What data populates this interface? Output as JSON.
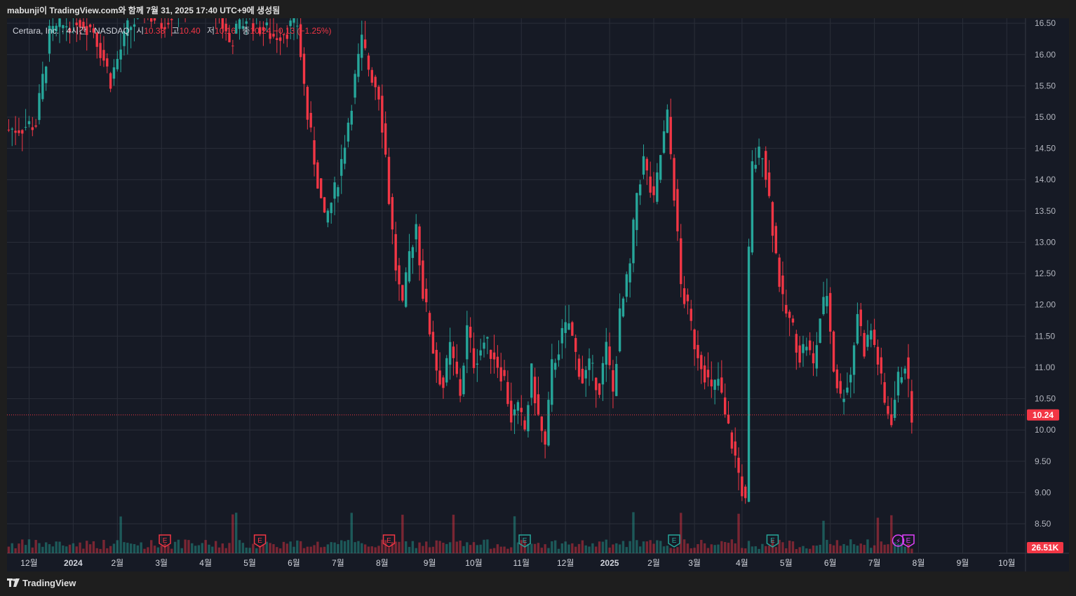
{
  "header": {
    "title": "mabunji이 TradingView.com와 함께 7월 31, 2025 17:40 UTC+9에 생성됨"
  },
  "legend": {
    "symbol": "Certara, Inc. · 4시간 · NASDAQ",
    "open_label": "시",
    "open": "10.38",
    "high_label": "고",
    "high": "10.40",
    "low_label": "저",
    "low": "10.16",
    "close_label": "종",
    "close": "10.24",
    "change": "−0.13 (−1.25%)"
  },
  "footer": {
    "brand": "TradingView"
  },
  "colors": {
    "up": "#26a69a",
    "down": "#f23645",
    "bg": "#161a25",
    "grid": "#2a2e39"
  },
  "chart_data": {
    "type": "candlestick",
    "y_ticks": [
      "16.50",
      "16.00",
      "15.50",
      "15.00",
      "14.50",
      "14.00",
      "13.50",
      "13.00",
      "12.50",
      "12.00",
      "11.50",
      "11.00",
      "10.50",
      "10.00",
      "9.50",
      "9.00",
      "8.50"
    ],
    "ylim": [
      8.03,
      16.58
    ],
    "x_ticks": [
      "12월",
      "2024",
      "2월",
      "3월",
      "4월",
      "5월",
      "6월",
      "7월",
      "8월",
      "9월",
      "10월",
      "11월",
      "12월",
      "2025",
      "2월",
      "3월",
      "4월",
      "5월",
      "6월",
      "7월",
      "8월",
      "9월",
      "10월"
    ],
    "x_tick_index": [
      6,
      19,
      32,
      45,
      58,
      71,
      84,
      97,
      110,
      124,
      137,
      151,
      164,
      177,
      190,
      202,
      216,
      229,
      242,
      255,
      268,
      281,
      294
    ],
    "last_price": "10.24",
    "last_volume": "26.51K",
    "price_path": [
      [
        0,
        14.8
      ],
      [
        8,
        14.9
      ],
      [
        10,
        15.6
      ],
      [
        12,
        16.3
      ],
      [
        20,
        16.6
      ],
      [
        25,
        16.4
      ],
      [
        30,
        15.6
      ],
      [
        35,
        16.4
      ],
      [
        40,
        16.7
      ],
      [
        45,
        16.5
      ],
      [
        50,
        16.8
      ],
      [
        60,
        16.9
      ],
      [
        65,
        16.2
      ],
      [
        70,
        16.6
      ],
      [
        78,
        16.3
      ],
      [
        85,
        16.5
      ],
      [
        88,
        15.0
      ],
      [
        91,
        14.0
      ],
      [
        93,
        13.3
      ],
      [
        96,
        13.8
      ],
      [
        98,
        14.3
      ],
      [
        102,
        15.6
      ],
      [
        104,
        16.2
      ],
      [
        106,
        15.8
      ],
      [
        109,
        15.4
      ],
      [
        111,
        14.4
      ],
      [
        112,
        13.7
      ],
      [
        114,
        12.6
      ],
      [
        116,
        11.9
      ],
      [
        118,
        12.8
      ],
      [
        120,
        13.3
      ],
      [
        122,
        12.2
      ],
      [
        124,
        11.6
      ],
      [
        126,
        11.0
      ],
      [
        128,
        10.7
      ],
      [
        130,
        11.3
      ],
      [
        133,
        10.6
      ],
      [
        135,
        11.6
      ],
      [
        137,
        11.1
      ],
      [
        140,
        11.4
      ],
      [
        143,
        11.2
      ],
      [
        146,
        10.8
      ],
      [
        148,
        10.2
      ],
      [
        150,
        10.3
      ],
      [
        152,
        10.0
      ],
      [
        154,
        10.9
      ],
      [
        156,
        10.2
      ],
      [
        158,
        9.7
      ],
      [
        160,
        11.0
      ],
      [
        163,
        11.5
      ],
      [
        165,
        11.7
      ],
      [
        167,
        11.2
      ],
      [
        169,
        10.8
      ],
      [
        171,
        11.0
      ],
      [
        174,
        10.7
      ],
      [
        176,
        11.3
      ],
      [
        178,
        10.6
      ],
      [
        180,
        11.8
      ],
      [
        183,
        12.6
      ],
      [
        185,
        13.8
      ],
      [
        187,
        14.3
      ],
      [
        190,
        13.6
      ],
      [
        192,
        14.4
      ],
      [
        194,
        15.0
      ],
      [
        196,
        13.8
      ],
      [
        198,
        12.3
      ],
      [
        200,
        11.9
      ],
      [
        202,
        11.4
      ],
      [
        204,
        11.1
      ],
      [
        207,
        10.6
      ],
      [
        209,
        10.8
      ],
      [
        211,
        10.2
      ],
      [
        213,
        9.8
      ],
      [
        215,
        9.3
      ],
      [
        217,
        8.8
      ],
      [
        218,
        12.8
      ],
      [
        219,
        14.2
      ],
      [
        222,
        14.5
      ],
      [
        224,
        13.7
      ],
      [
        226,
        12.8
      ],
      [
        228,
        12.0
      ],
      [
        231,
        11.6
      ],
      [
        233,
        11.2
      ],
      [
        235,
        11.4
      ],
      [
        237,
        11.0
      ],
      [
        239,
        11.8
      ],
      [
        241,
        12.2
      ],
      [
        243,
        11.0
      ],
      [
        245,
        10.5
      ],
      [
        248,
        10.9
      ],
      [
        250,
        11.9
      ],
      [
        252,
        11.3
      ],
      [
        254,
        11.6
      ],
      [
        256,
        11.1
      ],
      [
        258,
        10.4
      ],
      [
        260,
        10.2
      ],
      [
        262,
        10.8
      ],
      [
        264,
        11.1
      ],
      [
        266,
        10.24
      ]
    ],
    "earnings_markers": [
      {
        "i": 46,
        "label": "E",
        "color": "#f23645"
      },
      {
        "i": 74,
        "label": "E",
        "color": "#f23645"
      },
      {
        "i": 112,
        "label": "E",
        "color": "#f23645"
      },
      {
        "i": 152,
        "label": "E",
        "color": "#26a69a"
      },
      {
        "i": 196,
        "label": "E",
        "color": "#26a69a"
      },
      {
        "i": 225,
        "label": "E",
        "color": "#26a69a"
      },
      {
        "i": 265,
        "label": "E",
        "color": "#e040fb"
      }
    ],
    "dividend_marker": {
      "i": 262,
      "label": "⚡",
      "color": "#e040fb"
    }
  }
}
